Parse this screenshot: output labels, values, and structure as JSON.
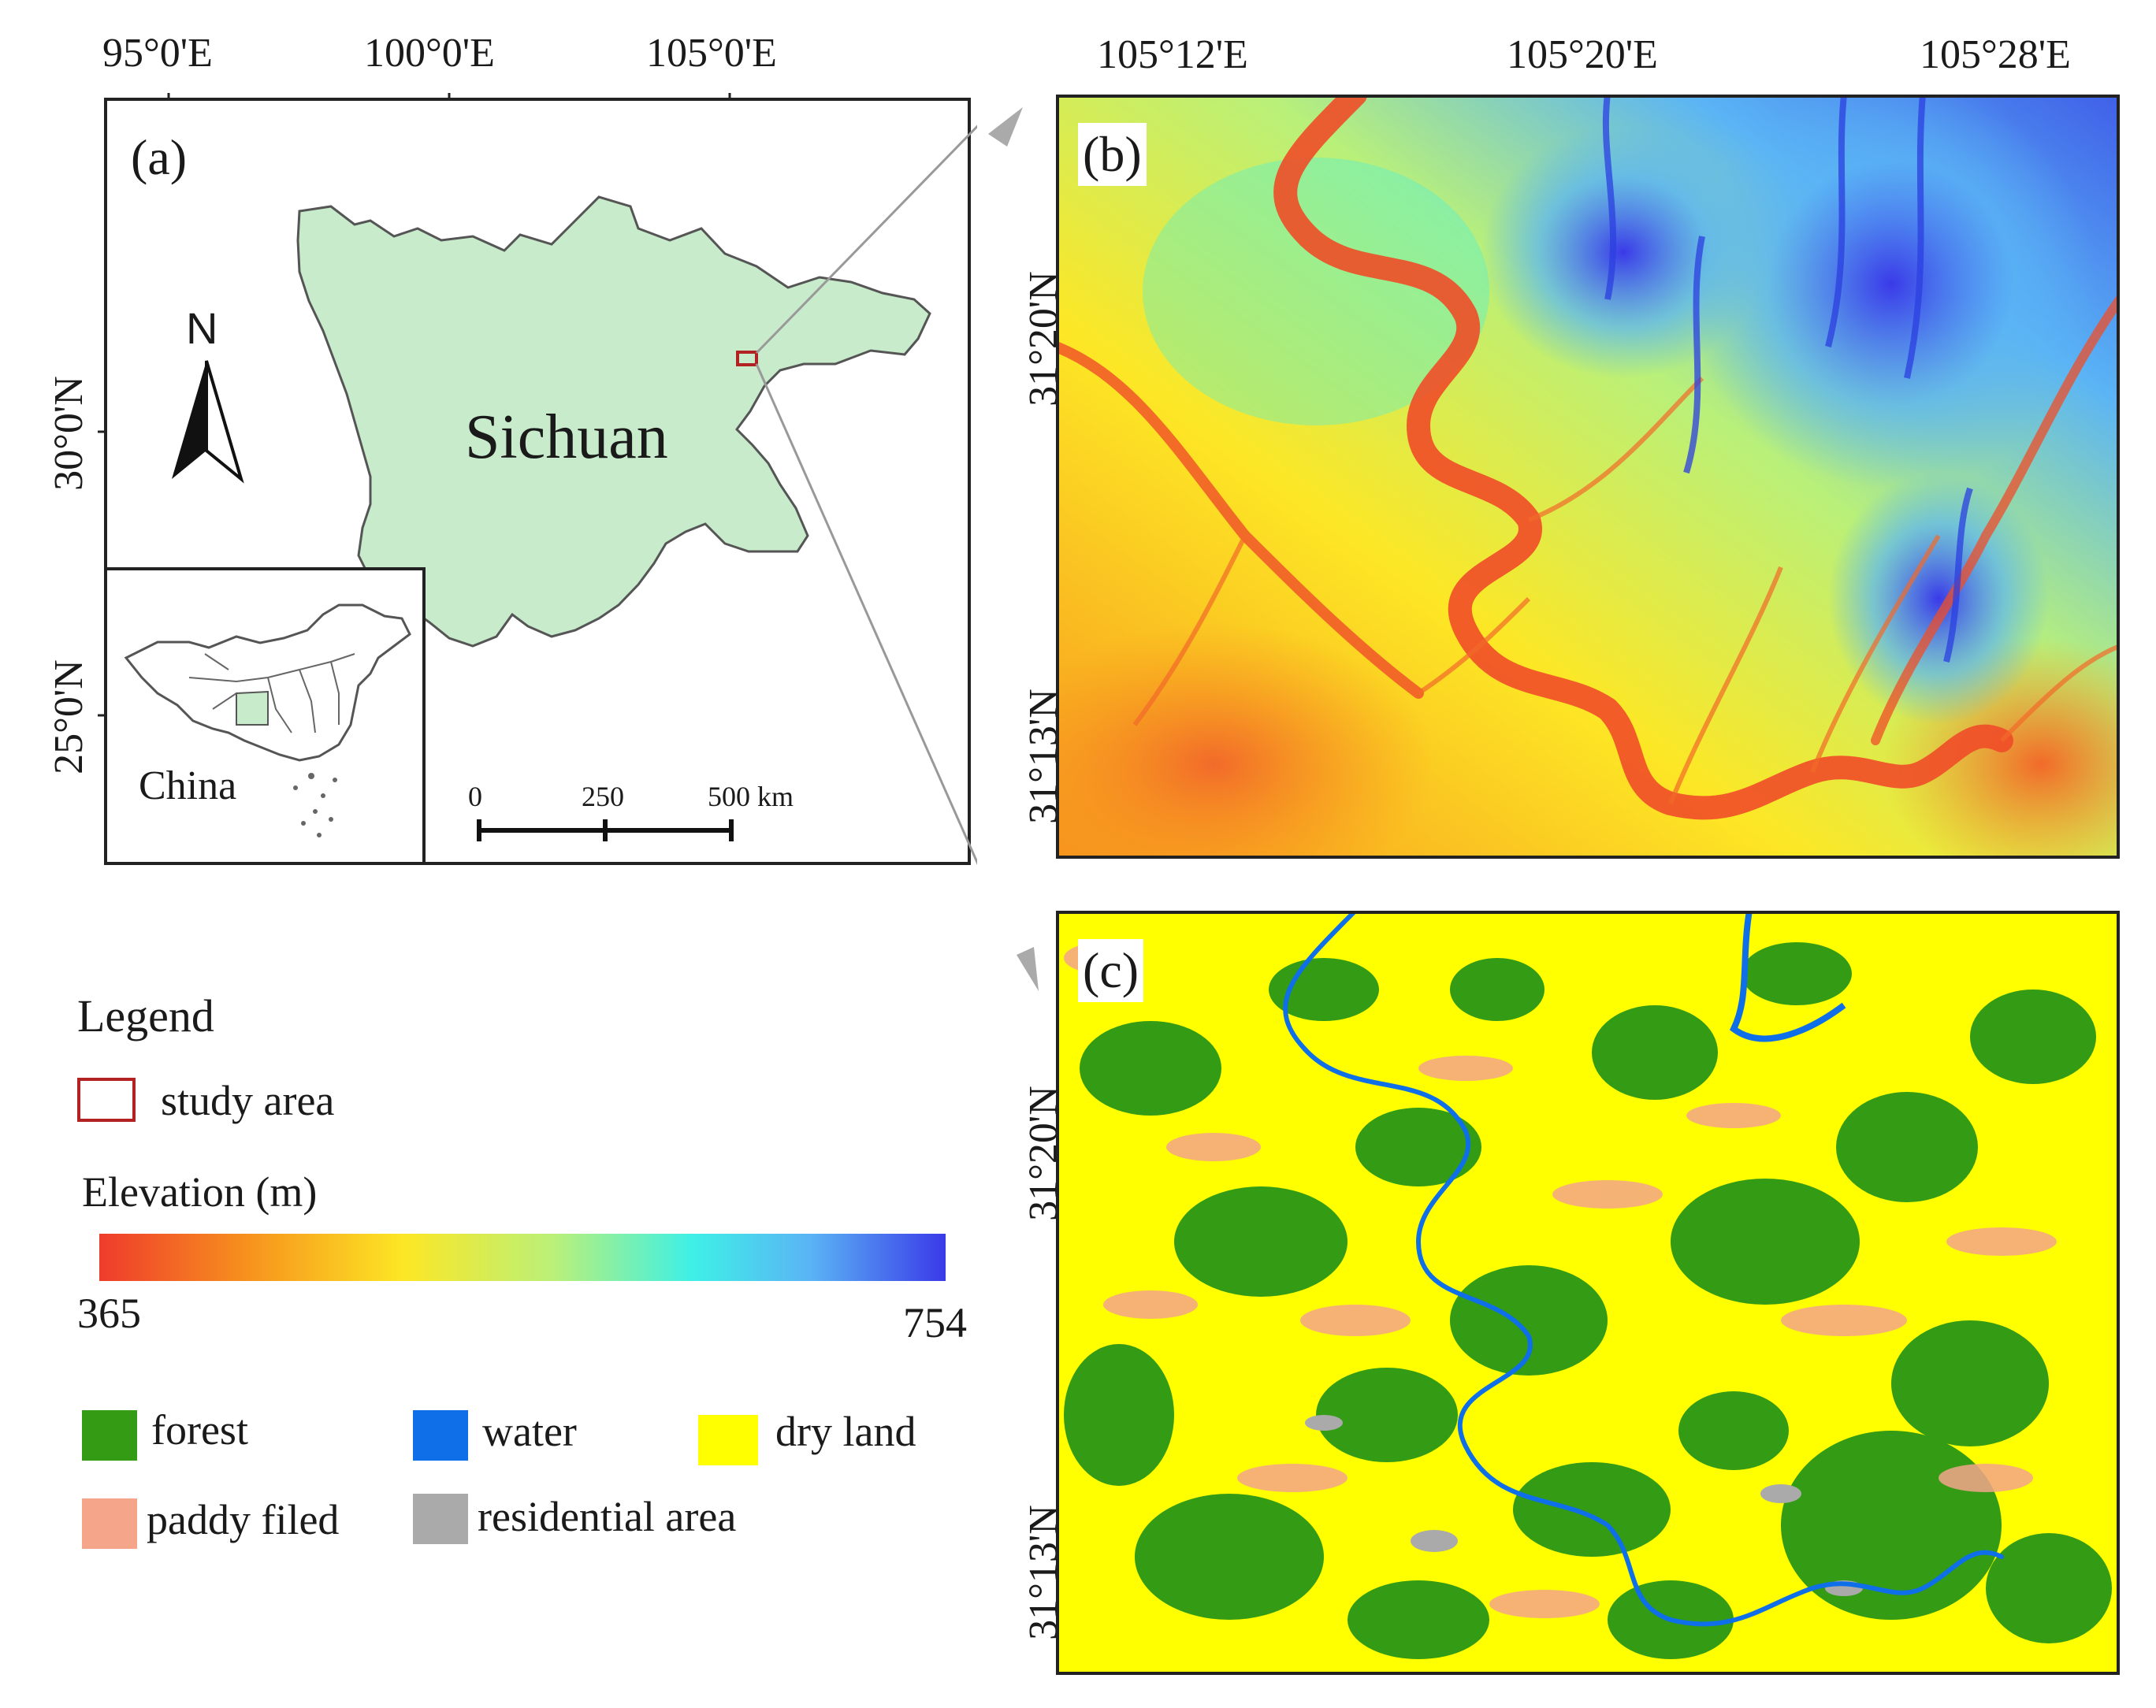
{
  "panel_a": {
    "label": "(a)",
    "top_ticks": [
      "95°0'E",
      "100°0'E",
      "105°0'E"
    ],
    "left_ticks": [
      "30°0'N",
      "25°0'N"
    ],
    "north": "N",
    "province": "Sichuan",
    "inset_label": "China",
    "scale": {
      "ticks": [
        "0",
        "250",
        "500 km"
      ]
    }
  },
  "panel_b": {
    "label": "(b)",
    "top_ticks": [
      "105°12'E",
      "105°20'E",
      "105°28'E"
    ],
    "left_ticks": [
      "31°20'N",
      "31°13'N"
    ]
  },
  "panel_c": {
    "label": "(c)",
    "left_ticks": [
      "31°20'N",
      "31°13'N"
    ]
  },
  "legend": {
    "title": "Legend",
    "study_area": "study area",
    "study_area_color": "#b22222",
    "elevation_title": "Elevation (m)",
    "elevation_min": "365",
    "elevation_max": "754",
    "ramp_colors": [
      "#ef3b2c",
      "#f7941d",
      "#fde725",
      "#b8f07a",
      "#3ef0e6",
      "#5ab4f5",
      "#3a3ae8"
    ],
    "land_use": [
      {
        "label": "forest",
        "color": "#339b14"
      },
      {
        "label": "water",
        "color": "#0f6fe8"
      },
      {
        "label": "dry land",
        "color": "#ffff00"
      },
      {
        "label": "paddy filed",
        "color": "#f4a58a"
      },
      {
        "label": "residential area",
        "color": "#aaaaaa"
      }
    ]
  }
}
